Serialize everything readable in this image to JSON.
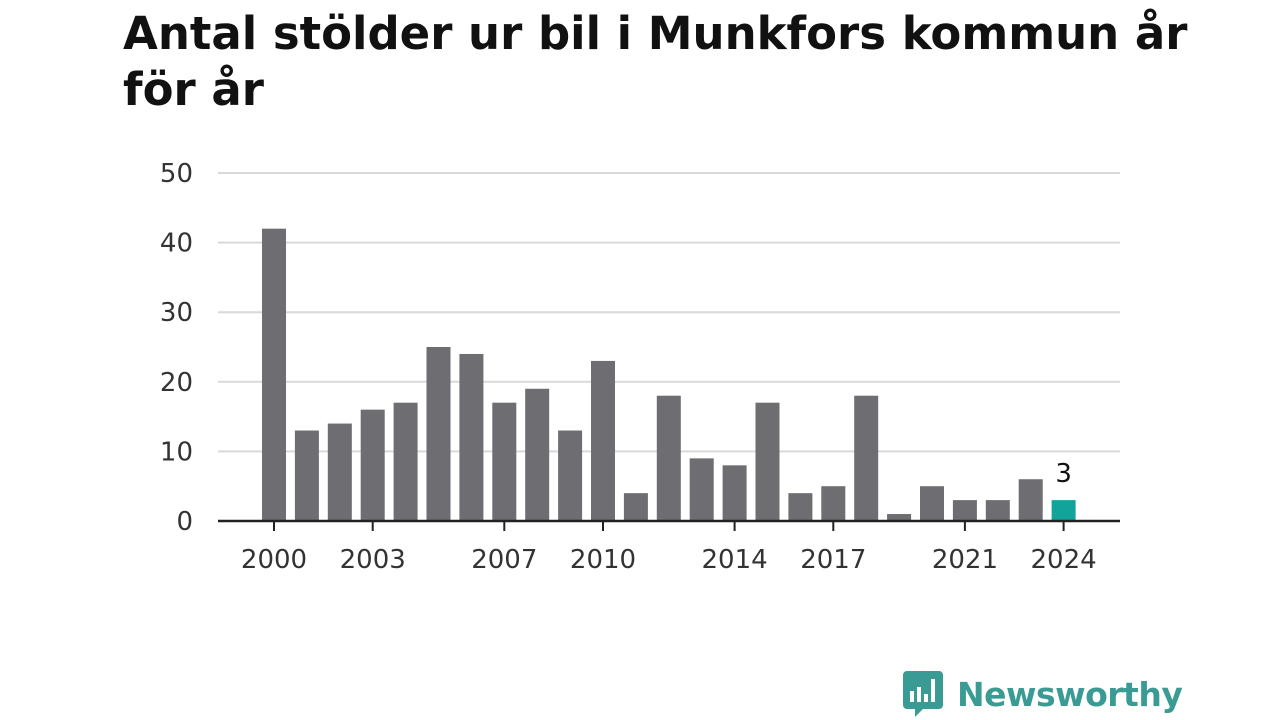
{
  "chart_data": {
    "type": "bar",
    "title": "Antal stölder ur bil i Munkfors kommun år för år",
    "xlabel": "",
    "ylabel": "",
    "x": [
      2000,
      2001,
      2002,
      2003,
      2004,
      2005,
      2006,
      2007,
      2008,
      2009,
      2010,
      2011,
      2012,
      2013,
      2014,
      2015,
      2016,
      2017,
      2018,
      2019,
      2020,
      2021,
      2022,
      2023,
      2024
    ],
    "values": [
      42,
      13,
      14,
      16,
      17,
      25,
      24,
      17,
      19,
      13,
      23,
      4,
      18,
      9,
      8,
      17,
      4,
      5,
      18,
      1,
      5,
      3,
      3,
      6,
      3
    ],
    "ylim": [
      0,
      50
    ],
    "y_ticks": [
      "0",
      "10",
      "20",
      "30",
      "40",
      "50"
    ],
    "x_tick_labels": [
      "2000",
      "2003",
      "2007",
      "2010",
      "2014",
      "2017",
      "2021",
      "2024"
    ],
    "x_tick_years": [
      2000,
      2003,
      2007,
      2010,
      2014,
      2017,
      2021,
      2024
    ],
    "highlight_index": 24,
    "highlight_label": "3",
    "bar_color": "#6d6d72",
    "highlight_color": "#12a39a",
    "grid": true,
    "grid_color": "#d9d9d9",
    "axis_color": "#222222"
  },
  "logo": {
    "text": "Newsworthy",
    "icon": "newsworthy-chart-bubble-icon",
    "color": "#3a9b94"
  }
}
